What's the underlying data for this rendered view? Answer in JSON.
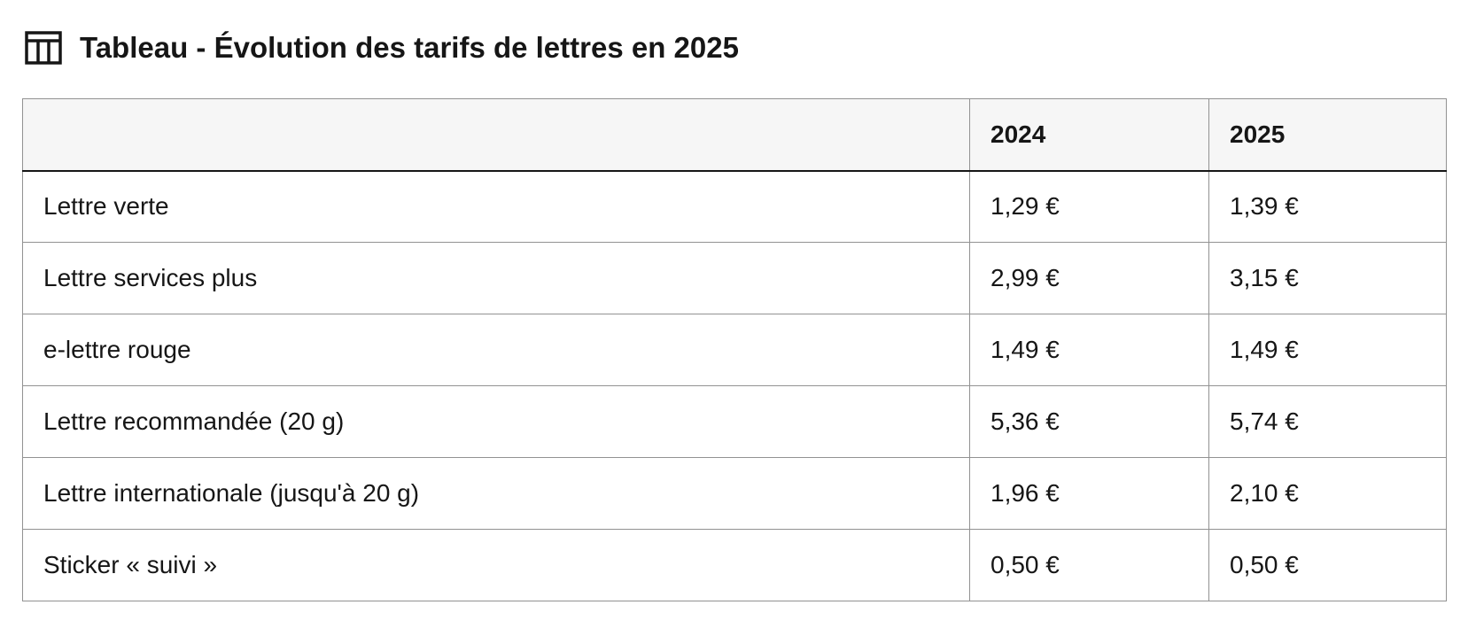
{
  "title": "Tableau - Évolution des tarifs de lettres en 2025",
  "icon": "table-icon",
  "table": {
    "headers": [
      "",
      "2024",
      "2025"
    ],
    "rows": [
      [
        "Lettre verte",
        "1,29 €",
        "1,39 €"
      ],
      [
        "Lettre services plus",
        "2,99 €",
        "3,15 €"
      ],
      [
        "e-lettre rouge",
        "1,49 €",
        "1,49 €"
      ],
      [
        "Lettre recommandée (20 g)",
        "5,36 €",
        "5,74 €"
      ],
      [
        "Lettre internationale (jusqu'à 20 g)",
        "1,96 €",
        "2,10 €"
      ],
      [
        "Sticker « suivi »",
        "0,50 €",
        "0,50 €"
      ]
    ]
  },
  "colors": {
    "header_bg": "#f6f6f6",
    "border": "#929292",
    "text": "#161616"
  }
}
